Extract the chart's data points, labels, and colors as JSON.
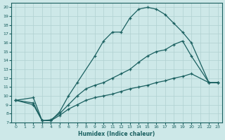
{
  "xlabel": "Humidex (Indice chaleur)",
  "xlim": [
    -0.5,
    23.5
  ],
  "ylim": [
    7,
    20.5
  ],
  "xticks": [
    0,
    1,
    2,
    3,
    4,
    5,
    6,
    7,
    8,
    9,
    10,
    11,
    12,
    13,
    14,
    15,
    16,
    17,
    18,
    19,
    20,
    21,
    22,
    23
  ],
  "yticks": [
    7,
    8,
    9,
    10,
    11,
    12,
    13,
    14,
    15,
    16,
    17,
    18,
    19,
    20
  ],
  "bg_color": "#cde8e8",
  "line_color": "#1a6060",
  "grid_color": "#b0d0d0",
  "line1_x": [
    0,
    2,
    3,
    4,
    5,
    6,
    7,
    9,
    10,
    11,
    12,
    13,
    14,
    15,
    16,
    17,
    18,
    19,
    20,
    22,
    23
  ],
  "line1_y": [
    9.5,
    9.8,
    7.2,
    7.2,
    8.2,
    10.0,
    11.5,
    14.5,
    16.2,
    17.2,
    17.2,
    18.8,
    19.8,
    20.0,
    19.8,
    19.2,
    18.2,
    17.2,
    16.0,
    11.5,
    11.5
  ],
  "line2_x": [
    0,
    2,
    3,
    4,
    5,
    6,
    7,
    8,
    9,
    10,
    11,
    12,
    13,
    14,
    15,
    16,
    17,
    18,
    19,
    20,
    22,
    23
  ],
  "line2_y": [
    9.5,
    9.2,
    7.2,
    7.3,
    8.0,
    9.0,
    10.0,
    10.8,
    11.2,
    11.5,
    12.0,
    12.5,
    13.0,
    13.8,
    14.5,
    15.0,
    15.2,
    15.8,
    16.2,
    14.5,
    11.5,
    11.5
  ],
  "line3_x": [
    0,
    2,
    3,
    4,
    5,
    6,
    7,
    8,
    9,
    10,
    11,
    12,
    13,
    14,
    15,
    16,
    17,
    18,
    19,
    20,
    22,
    23
  ],
  "line3_y": [
    9.5,
    9.0,
    7.2,
    7.2,
    7.8,
    8.5,
    9.0,
    9.5,
    9.8,
    10.0,
    10.2,
    10.5,
    10.8,
    11.0,
    11.2,
    11.5,
    11.7,
    12.0,
    12.2,
    12.5,
    11.5,
    11.5
  ]
}
